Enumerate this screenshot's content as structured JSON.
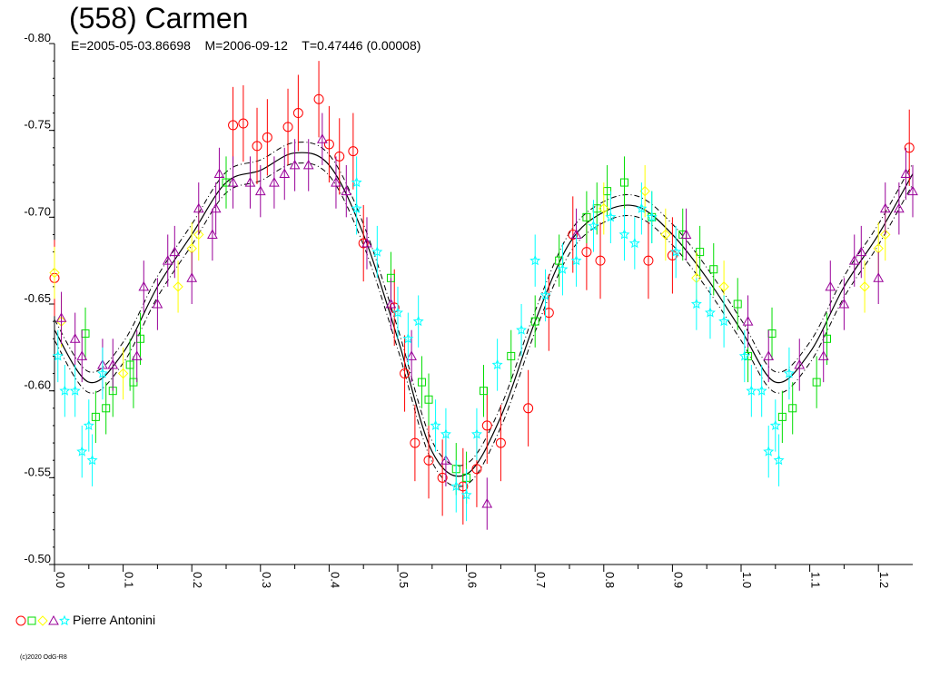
{
  "header": {
    "title": "(558) Carmen",
    "subtitle": "E=2005-05-03.86698    M=2006-09-12    T=0.47446 (0.00008)"
  },
  "legend": {
    "symbols": [
      "circle",
      "square",
      "diamond",
      "triangle",
      "star"
    ],
    "label": "Pierre Antonini"
  },
  "copyright": "(c)2020 OdG-R8",
  "colors": {
    "circle": "#ff0000",
    "square": "#00dd00",
    "diamond": "#ffff00",
    "triangle": "#990099",
    "star": "#00ffff",
    "curve": "#000000"
  },
  "chart_data": {
    "type": "scatter",
    "title": "(558) Carmen",
    "xlabel": "",
    "ylabel": "",
    "xlim": [
      0.0,
      1.25
    ],
    "ylim": [
      -0.8,
      -0.5
    ],
    "y_inverted": true,
    "x_ticks": [
      "0.0",
      "0.1",
      "0.2",
      "0.3",
      "0.4",
      "0.5",
      "0.6",
      "0.7",
      "0.8",
      "0.9",
      "1.0",
      "1.1",
      "1.2"
    ],
    "y_ticks": [
      "-0.80",
      "-0.75",
      "-0.70",
      "-0.65",
      "-0.60",
      "-0.55",
      "-0.50"
    ],
    "fit_curve": {
      "x": [
        0.0,
        0.05,
        0.1,
        0.15,
        0.2,
        0.25,
        0.3,
        0.35,
        0.4,
        0.45,
        0.5,
        0.55,
        0.6,
        0.65,
        0.7,
        0.75,
        0.8,
        0.85,
        0.9,
        0.95,
        1.0,
        1.05,
        1.1,
        1.15,
        1.2,
        1.25
      ],
      "y": [
        -0.635,
        -0.605,
        -0.622,
        -0.66,
        -0.69,
        -0.72,
        -0.727,
        -0.737,
        -0.73,
        -0.69,
        -0.63,
        -0.565,
        -0.552,
        -0.585,
        -0.64,
        -0.685,
        -0.703,
        -0.706,
        -0.69,
        -0.665,
        -0.635,
        -0.605,
        -0.622,
        -0.66,
        -0.69,
        -0.725
      ],
      "band": 0.006
    },
    "series": [
      {
        "name": "Pierre Antonini",
        "marker": "circle",
        "points": [
          [
            0.26,
            -0.753
          ],
          [
            0.275,
            -0.754
          ],
          [
            0.295,
            -0.741
          ],
          [
            0.31,
            -0.746
          ],
          [
            0.34,
            -0.752
          ],
          [
            0.355,
            -0.76
          ],
          [
            0.385,
            -0.768
          ],
          [
            0.4,
            -0.742
          ],
          [
            0.415,
            -0.735
          ],
          [
            0.435,
            -0.738
          ],
          [
            0.45,
            -0.685
          ],
          [
            0.495,
            -0.648
          ],
          [
            0.51,
            -0.61
          ],
          [
            0.525,
            -0.57
          ],
          [
            0.545,
            -0.56
          ],
          [
            0.565,
            -0.55
          ],
          [
            0.595,
            -0.545
          ],
          [
            0.615,
            -0.555
          ],
          [
            0.63,
            -0.58
          ],
          [
            0.65,
            -0.57
          ],
          [
            0.69,
            -0.59
          ],
          [
            0.72,
            -0.645
          ],
          [
            0.755,
            -0.69
          ],
          [
            0.775,
            -0.68
          ],
          [
            0.795,
            -0.675
          ],
          [
            0.865,
            -0.675
          ],
          [
            0.9,
            -0.678
          ],
          [
            1.245,
            -0.74
          ],
          [
            0.0,
            -0.665
          ]
        ]
      },
      {
        "name": "",
        "marker": "square",
        "points": [
          [
            0.045,
            -0.633
          ],
          [
            0.06,
            -0.585
          ],
          [
            0.075,
            -0.59
          ],
          [
            0.085,
            -0.6
          ],
          [
            0.11,
            -0.615
          ],
          [
            0.115,
            -0.605
          ],
          [
            0.125,
            -0.63
          ],
          [
            0.25,
            -0.72
          ],
          [
            0.49,
            -0.665
          ],
          [
            0.535,
            -0.605
          ],
          [
            0.545,
            -0.595
          ],
          [
            0.585,
            -0.555
          ],
          [
            0.6,
            -0.55
          ],
          [
            0.625,
            -0.6
          ],
          [
            0.665,
            -0.62
          ],
          [
            0.7,
            -0.64
          ],
          [
            0.735,
            -0.675
          ],
          [
            0.775,
            -0.7
          ],
          [
            0.79,
            -0.705
          ],
          [
            0.805,
            -0.715
          ],
          [
            0.83,
            -0.72
          ],
          [
            0.87,
            -0.7
          ],
          [
            0.915,
            -0.69
          ],
          [
            0.94,
            -0.68
          ],
          [
            0.96,
            -0.67
          ],
          [
            0.995,
            -0.65
          ],
          [
            1.01,
            -0.62
          ],
          [
            1.045,
            -0.633
          ],
          [
            1.06,
            -0.585
          ],
          [
            1.075,
            -0.59
          ],
          [
            1.11,
            -0.605
          ],
          [
            1.125,
            -0.63
          ]
        ]
      },
      {
        "name": "",
        "marker": "diamond",
        "points": [
          [
            0.0,
            -0.668
          ],
          [
            0.01,
            -0.64
          ],
          [
            0.1,
            -0.61
          ],
          [
            0.18,
            -0.66
          ],
          [
            0.2,
            -0.682
          ],
          [
            0.21,
            -0.69
          ],
          [
            0.8,
            -0.705
          ],
          [
            0.86,
            -0.715
          ],
          [
            0.89,
            -0.69
          ],
          [
            0.935,
            -0.665
          ],
          [
            0.975,
            -0.66
          ],
          [
            1.18,
            -0.66
          ],
          [
            1.2,
            -0.682
          ],
          [
            1.21,
            -0.69
          ]
        ]
      },
      {
        "name": "",
        "marker": "triangle",
        "points": [
          [
            0.01,
            -0.642
          ],
          [
            0.03,
            -0.63
          ],
          [
            0.04,
            -0.62
          ],
          [
            0.07,
            -0.615
          ],
          [
            0.085,
            -0.615
          ],
          [
            0.12,
            -0.62
          ],
          [
            0.13,
            -0.66
          ],
          [
            0.15,
            -0.65
          ],
          [
            0.165,
            -0.675
          ],
          [
            0.175,
            -0.68
          ],
          [
            0.2,
            -0.665
          ],
          [
            0.21,
            -0.705
          ],
          [
            0.23,
            -0.69
          ],
          [
            0.235,
            -0.705
          ],
          [
            0.24,
            -0.725
          ],
          [
            0.26,
            -0.72
          ],
          [
            0.285,
            -0.72
          ],
          [
            0.3,
            -0.715
          ],
          [
            0.32,
            -0.72
          ],
          [
            0.335,
            -0.725
          ],
          [
            0.35,
            -0.73
          ],
          [
            0.37,
            -0.73
          ],
          [
            0.39,
            -0.745
          ],
          [
            0.41,
            -0.72
          ],
          [
            0.425,
            -0.715
          ],
          [
            0.455,
            -0.685
          ],
          [
            0.49,
            -0.65
          ],
          [
            0.52,
            -0.62
          ],
          [
            0.57,
            -0.56
          ],
          [
            0.63,
            -0.535
          ],
          [
            0.76,
            -0.69
          ],
          [
            0.92,
            -0.69
          ],
          [
            1.01,
            -0.64
          ],
          [
            1.04,
            -0.62
          ],
          [
            1.085,
            -0.615
          ],
          [
            1.12,
            -0.62
          ],
          [
            1.13,
            -0.66
          ],
          [
            1.15,
            -0.65
          ],
          [
            1.165,
            -0.675
          ],
          [
            1.175,
            -0.68
          ],
          [
            1.2,
            -0.665
          ],
          [
            1.21,
            -0.705
          ],
          [
            1.23,
            -0.705
          ],
          [
            1.24,
            -0.725
          ],
          [
            1.25,
            -0.715
          ]
        ]
      },
      {
        "name": "",
        "marker": "star",
        "points": [
          [
            0.005,
            -0.62
          ],
          [
            0.015,
            -0.6
          ],
          [
            0.03,
            -0.6
          ],
          [
            0.04,
            -0.565
          ],
          [
            0.05,
            -0.58
          ],
          [
            0.055,
            -0.56
          ],
          [
            0.07,
            -0.61
          ],
          [
            0.44,
            -0.705
          ],
          [
            0.47,
            -0.68
          ],
          [
            0.5,
            -0.645
          ],
          [
            0.515,
            -0.63
          ],
          [
            0.53,
            -0.64
          ],
          [
            0.555,
            -0.58
          ],
          [
            0.57,
            -0.575
          ],
          [
            0.585,
            -0.545
          ],
          [
            0.6,
            -0.54
          ],
          [
            0.615,
            -0.575
          ],
          [
            0.645,
            -0.615
          ],
          [
            0.68,
            -0.635
          ],
          [
            0.7,
            -0.675
          ],
          [
            0.715,
            -0.655
          ],
          [
            0.74,
            -0.67
          ],
          [
            0.76,
            -0.675
          ],
          [
            0.785,
            -0.695
          ],
          [
            0.81,
            -0.7
          ],
          [
            0.83,
            -0.69
          ],
          [
            0.845,
            -0.685
          ],
          [
            0.855,
            -0.705
          ],
          [
            0.87,
            -0.7
          ],
          [
            0.905,
            -0.68
          ],
          [
            0.935,
            -0.65
          ],
          [
            0.955,
            -0.645
          ],
          [
            0.975,
            -0.64
          ],
          [
            1.005,
            -0.62
          ],
          [
            1.015,
            -0.6
          ],
          [
            1.03,
            -0.6
          ],
          [
            1.04,
            -0.565
          ],
          [
            1.05,
            -0.58
          ],
          [
            1.055,
            -0.56
          ],
          [
            1.07,
            -0.61
          ],
          [
            0.44,
            -0.72
          ]
        ]
      }
    ]
  }
}
